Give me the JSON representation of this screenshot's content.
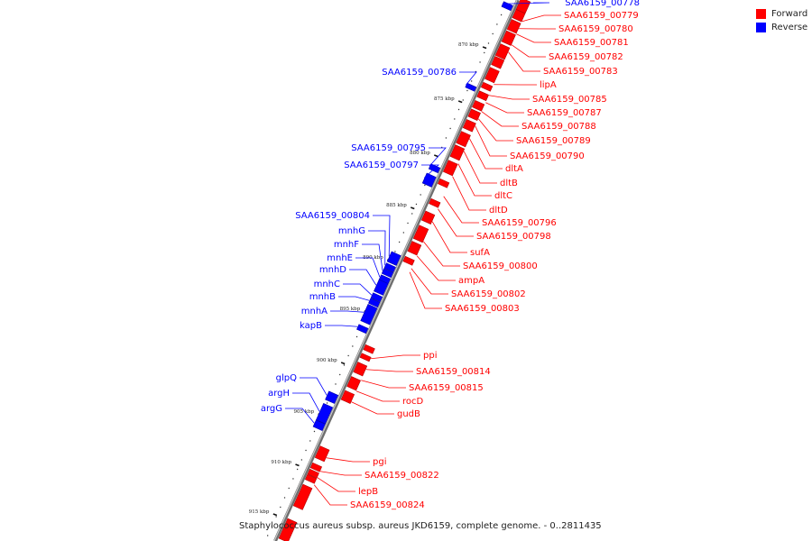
{
  "colors": {
    "forward": "#ff0000",
    "reverse": "#0000ff",
    "backbone": "#8a8a8a"
  },
  "legend": [
    {
      "label": "Forward",
      "color": "#ff0000"
    },
    {
      "label": "Reverse",
      "color": "#0000ff"
    }
  ],
  "caption": "Staphylococcus aureus subsp. aureus JKD6159, complete genome. - 0..2811435",
  "ticks": [
    "870 kbp",
    "875 kbp",
    "880 kbp",
    "885 kbp",
    "890 kbp",
    "895 kbp",
    "900 kbp",
    "905 kbp",
    "910 kbp",
    "915 kbp"
  ],
  "forward_genes": [
    "SAA6159_00779",
    "SAA6159_00780",
    "SAA6159_00781",
    "SAA6159_00782",
    "SAA6159_00783",
    "lipA",
    "SAA6159_00785",
    "SAA6159_00787",
    "SAA6159_00788",
    "SAA6159_00789",
    "SAA6159_00790",
    "dltA",
    "dltB",
    "dltC",
    "dltD",
    "SAA6159_00796",
    "SAA6159_00798",
    "sufA",
    "SAA6159_00800",
    "ampA",
    "SAA6159_00802",
    "SAA6159_00803",
    "ppi",
    "SAA6159_00814",
    "SAA6159_00815",
    "rocD",
    "gudB",
    "pgi",
    "SAA6159_00822",
    "lepB",
    "SAA6159_00824"
  ],
  "reverse_genes": [
    "SAA6159_00778",
    "SAA6159_00786",
    "SAA6159_00795",
    "SAA6159_00797",
    "SAA6159_00804",
    "mnhG",
    "mnhF",
    "mnhE",
    "mnhD",
    "mnhC",
    "mnhB",
    "mnhA",
    "kapB",
    "glpQ",
    "argH",
    "argG"
  ]
}
